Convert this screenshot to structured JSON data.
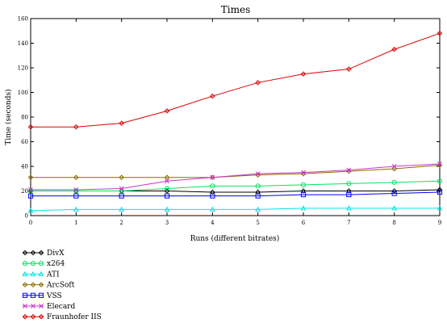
{
  "chart_data": {
    "type": "line",
    "title": "Times",
    "xlabel": "Runs (different bitrates)",
    "ylabel": "Time (seconds)",
    "x": [
      0,
      1,
      2,
      3,
      4,
      5,
      6,
      7,
      8,
      9
    ],
    "xlim": [
      0,
      9
    ],
    "ylim": [
      0,
      160
    ],
    "xticks": [
      "0",
      "1",
      "2",
      "3",
      "4",
      "5",
      "6",
      "7",
      "8",
      "9"
    ],
    "yticks": [
      "0",
      "20",
      "40",
      "60",
      "80",
      "100",
      "120",
      "140",
      "160"
    ],
    "grid": false,
    "legend_position": "bottom-left",
    "series": [
      {
        "name": "DivX",
        "color": "#000000",
        "marker": "diamond",
        "values": [
          20,
          20,
          20,
          20,
          19,
          19,
          20,
          20,
          20,
          21
        ]
      },
      {
        "name": "x264",
        "color": "#00e65c",
        "marker": "circle",
        "values": [
          20,
          20,
          20,
          22,
          24,
          24,
          25,
          26,
          27,
          28
        ]
      },
      {
        "name": "ATI",
        "color": "#00e6e6",
        "marker": "triangle",
        "values": [
          4,
          5,
          5,
          5,
          5,
          5,
          6,
          6,
          6,
          6
        ]
      },
      {
        "name": "ArcSoft",
        "color": "#8b6d00",
        "marker": "diamond",
        "values": [
          31,
          31,
          31,
          31,
          31,
          33,
          34,
          36,
          38,
          41
        ]
      },
      {
        "name": "VSS",
        "color": "#0000ff",
        "marker": "square",
        "values": [
          16,
          16,
          16,
          16,
          16,
          16,
          17,
          17,
          18,
          19
        ]
      },
      {
        "name": "Elecard",
        "color": "#cc33cc",
        "marker": "x",
        "values": [
          21,
          21,
          22,
          28,
          31,
          34,
          35,
          37,
          40,
          42
        ]
      },
      {
        "name": "Fraunhofer IIS",
        "color": "#dd0000",
        "marker": "diamond",
        "values": [
          72,
          72,
          75,
          85,
          97,
          108,
          115,
          119,
          135,
          148
        ]
      }
    ]
  }
}
